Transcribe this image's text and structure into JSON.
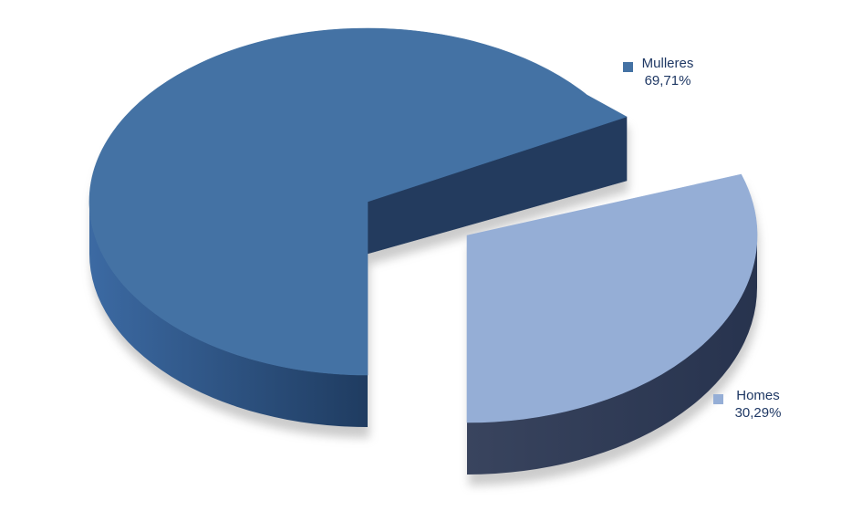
{
  "chart_data": {
    "type": "pie",
    "title": "",
    "is_3d": true,
    "exploded": true,
    "background": "#FFFFFF",
    "categories": [
      "Mulleres",
      "Homes"
    ],
    "values": [
      69.71,
      30.29
    ],
    "slices": [
      {
        "label": "Mulleres",
        "value": 69.71,
        "percent_display": "69,71%",
        "color": "#4472A4",
        "side_color": "#233B5E",
        "rim_gradient": [
          "#3C6AA3",
          "#1E3A5E"
        ],
        "exploded": false
      },
      {
        "label": "Homes",
        "value": 30.29,
        "percent_display": "30,29%",
        "color": "#95AED6",
        "side_color": "#2E3A55",
        "rim_gradient": [
          "#39445E",
          "#27334E"
        ],
        "exploded": true
      }
    ],
    "labels": {
      "position": "outside-end",
      "show_legend_key": true,
      "text_color": "#1F3864",
      "number_format": "0,00%"
    },
    "layout_hints": {
      "start_angle_deg": 180,
      "direction": "clockwise",
      "legend": "none",
      "shadow": true
    }
  }
}
